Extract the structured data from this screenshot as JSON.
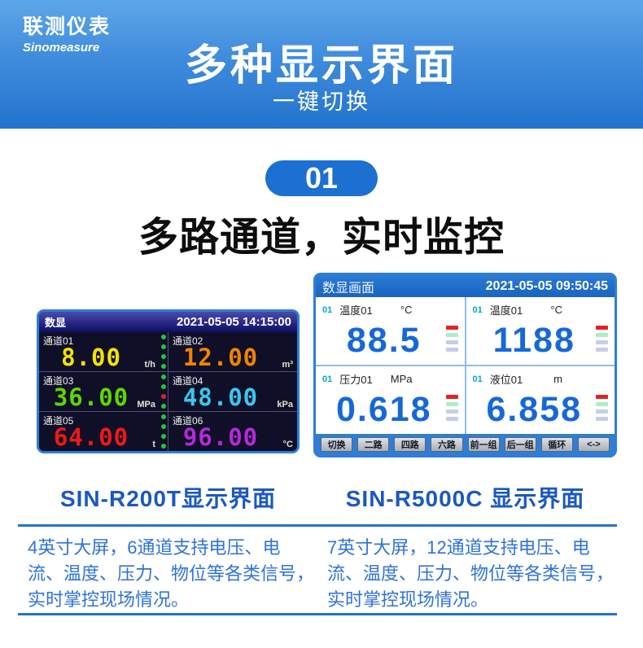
{
  "header": {
    "logo_cn": "联测仪表",
    "logo_en": "Sinomeasure",
    "title": "多种显示界面",
    "subtitle": "一键切换"
  },
  "section": {
    "badge": "01",
    "heading": "多路通道，实时监控"
  },
  "device_left": {
    "screen_title": "数显",
    "datetime": "2021-05-05 14:15:00",
    "caption": "SIN-R200T显示界面",
    "description": "4英寸大屏，6通道支持电压、电流、温度、压力、物位等各类信号，实时掌控现场情况。",
    "channels": [
      {
        "label": "通道01",
        "value": "8.00",
        "unit": "t/h",
        "color": "#f2e300",
        "dots": [
          "#1fc83c",
          "#1fc83c",
          "#1fc83c",
          "#1fc83c"
        ]
      },
      {
        "label": "通道02",
        "value": "12.00",
        "unit": "m³",
        "color": "#f08400"
      },
      {
        "label": "通道03",
        "value": "36.00",
        "unit": "MPa",
        "color": "#5cd800",
        "dots": [
          "#1fc83c",
          "#1fc83c",
          "#e02020",
          "#1fc83c"
        ]
      },
      {
        "label": "通道04",
        "value": "48.00",
        "unit": "kPa",
        "color": "#38c8f0"
      },
      {
        "label": "通道05",
        "value": "64.00",
        "unit": "t",
        "color": "#f01818",
        "dots": [
          "#1fc83c",
          "#1fc83c",
          "#1fc83c",
          "#1fc83c"
        ]
      },
      {
        "label": "通道06",
        "value": "96.00",
        "unit": "°C",
        "color": "#b42ad8"
      }
    ]
  },
  "device_right": {
    "screen_title": "数显画面",
    "datetime": "2021-05-05 09:50:45",
    "caption": "SIN-R5000C 显示界面",
    "description": "7英寸大屏，12通道支持电压、电流、温度、压力、物位等各类信号，实时掌控现场情况。",
    "alarm_colors": [
      "#e42222",
      "#aaeec6",
      "#c6cde9",
      "#c6cde9"
    ],
    "channels": [
      {
        "num": "01",
        "label": "温度01",
        "unit": "°C",
        "value": "88.5"
      },
      {
        "num": "01",
        "label": "温度01",
        "unit": "°C",
        "value": "1188"
      },
      {
        "num": "01",
        "label": "压力01",
        "unit": "MPa",
        "value": "0.618"
      },
      {
        "num": "01",
        "label": "液位01",
        "unit": "m",
        "value": "6.858"
      }
    ],
    "buttons": [
      "切换",
      "二路",
      "四路",
      "六路",
      "前一组",
      "后一组",
      "循环",
      "<->"
    ]
  },
  "colors": {
    "accent_blue": "#2273cd",
    "screen_border": "#2e7ed6",
    "value_blue": "#1668d8",
    "text_blue": "#2f72d8",
    "caption_blue": "#1b58c0"
  }
}
